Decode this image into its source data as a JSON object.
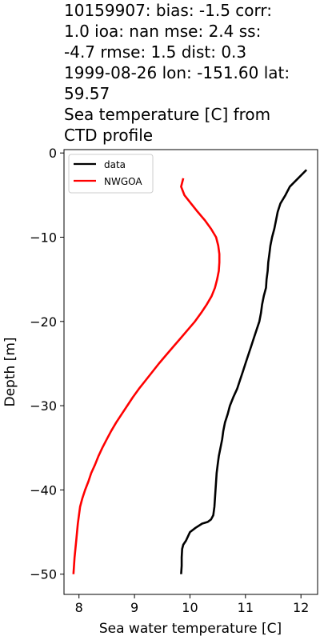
{
  "title_lines": [
    "10159907: bias: -1.5  corr:",
    "1.0  ioa: nan  mse: 2.4  ss:",
    "-4.7  rmse: 1.5  dist: 0.3",
    "1999-08-26 lon: -151.60 lat:",
    "59.57",
    "Sea temperature [C] from",
    "CTD profile"
  ],
  "chart_data": {
    "type": "line",
    "title": "10159907: bias: -1.5  corr: 1.0  ioa: nan  mse: 2.4  ss: -4.7  rmse: 1.5  dist: 0.3 1999-08-26 lon: -151.60 lat: 59.57 Sea temperature [C] from CTD profile",
    "xlabel": "Sea water temperature [C]",
    "ylabel": "Depth [m]",
    "xlim": [
      7.73,
      12.3
    ],
    "ylim": [
      -52.4,
      0.4
    ],
    "xticks": [
      8,
      9,
      10,
      11,
      12
    ],
    "yticks": [
      0,
      -10,
      -20,
      -30,
      -40,
      -50
    ],
    "xtick_labels": [
      "8",
      "9",
      "10",
      "11",
      "12"
    ],
    "ytick_labels": [
      "0",
      "−10",
      "−20",
      "−30",
      "−40",
      "−50"
    ],
    "legend_position": "upper-left",
    "series": [
      {
        "name": "data",
        "color": "#000000",
        "x": [
          12.1,
          11.95,
          11.8,
          11.72,
          11.63,
          11.58,
          11.55,
          11.52,
          11.48,
          11.45,
          11.43,
          11.41,
          11.4,
          11.38,
          11.37,
          11.33,
          11.3,
          11.28,
          11.25,
          11.2,
          11.15,
          11.1,
          11.05,
          11.0,
          10.95,
          10.9,
          10.85,
          10.78,
          10.72,
          10.68,
          10.63,
          10.6,
          10.58,
          10.55,
          10.52,
          10.5,
          10.48,
          10.47,
          10.46,
          10.45,
          10.44,
          10.42,
          10.38,
          10.32,
          10.22,
          10.1,
          10.0,
          9.93,
          9.88,
          9.86,
          9.85,
          9.85,
          9.84
        ],
        "y": [
          -2,
          -3,
          -4,
          -5,
          -6,
          -7,
          -8,
          -9,
          -10,
          -11,
          -12,
          -13,
          -14,
          -15,
          -16,
          -17,
          -18,
          -19,
          -20,
          -21,
          -22,
          -23,
          -24,
          -25,
          -26,
          -27,
          -28,
          -29,
          -30,
          -31,
          -32,
          -33,
          -34,
          -35,
          -36,
          -37,
          -38,
          -39,
          -40,
          -41,
          -42,
          -43,
          -43.5,
          -43.8,
          -44,
          -44.5,
          -45,
          -46,
          -46.5,
          -47,
          -48,
          -49,
          -50
        ]
      },
      {
        "name": "NWGOA",
        "color": "#ff0000",
        "x": [
          9.88,
          9.84,
          9.9,
          10.02,
          10.14,
          10.27,
          10.38,
          10.47,
          10.51,
          10.53,
          10.53,
          10.52,
          10.49,
          10.45,
          10.39,
          10.3,
          10.2,
          10.09,
          9.96,
          9.83,
          9.7,
          9.57,
          9.44,
          9.32,
          9.2,
          9.08,
          8.97,
          8.87,
          8.77,
          8.67,
          8.58,
          8.5,
          8.42,
          8.35,
          8.29,
          8.22,
          8.17,
          8.11,
          8.06,
          8.02,
          7.98,
          7.95,
          7.92,
          7.9
        ],
        "y": [
          -3,
          -4,
          -5,
          -6,
          -7,
          -8,
          -9,
          -10,
          -11,
          -12,
          -13,
          -14,
          -15,
          -16,
          -17,
          -18,
          -19,
          -20,
          -21,
          -22,
          -23,
          -24,
          -25,
          -26,
          -27,
          -28,
          -29,
          -30,
          -31,
          -32,
          -33,
          -34,
          -35,
          -36,
          -37,
          -38,
          -39,
          -40,
          -41,
          -42,
          -44,
          -46,
          -48,
          -50
        ]
      }
    ]
  }
}
